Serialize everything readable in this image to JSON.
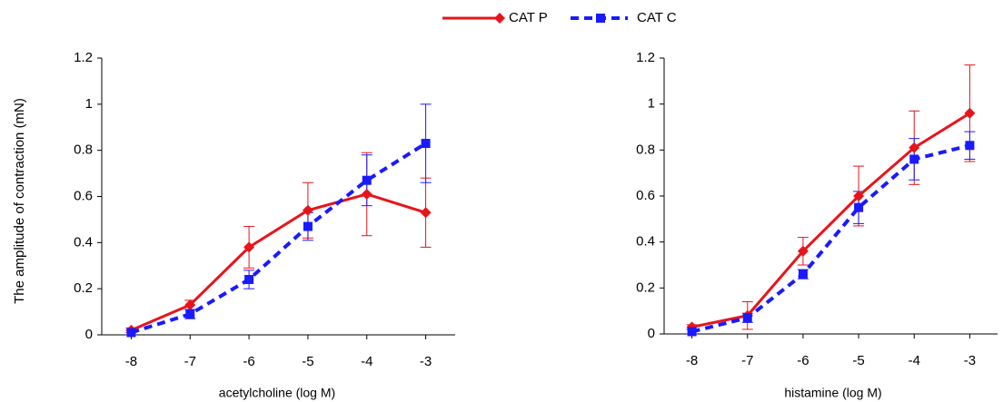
{
  "chart_data": [
    {
      "type": "line",
      "xlabel": "acetylcholine (log M)",
      "ylabel": "The amplitude of contraction (mN)",
      "x": [
        -8,
        -7,
        -6,
        -5,
        -4,
        -3
      ],
      "xlim": [
        -8.5,
        -2.5
      ],
      "xticks": [
        -8,
        -7,
        -6,
        -5,
        -4,
        -3
      ],
      "ylim": [
        0,
        1.2
      ],
      "yticks": [
        0,
        0.2,
        0.4,
        0.6,
        0.8,
        1,
        1.2
      ],
      "legend": "top",
      "series": [
        {
          "name": "CAT P",
          "color": "#e8141b",
          "marker": "diamond",
          "dashed": false,
          "values": [
            0.02,
            0.13,
            0.38,
            0.54,
            0.61,
            0.53
          ],
          "errors": [
            0.01,
            0.02,
            0.09,
            0.12,
            0.18,
            0.15
          ]
        },
        {
          "name": "CAT C",
          "color": "#1a1aff",
          "marker": "square",
          "dashed": true,
          "values": [
            0.01,
            0.09,
            0.24,
            0.47,
            0.67,
            0.83
          ],
          "errors": [
            0.01,
            0.02,
            0.04,
            0.06,
            0.11,
            0.17
          ]
        }
      ]
    },
    {
      "type": "line",
      "xlabel": "histamine (log M)",
      "x": [
        -8,
        -7,
        -6,
        -5,
        -4,
        -3
      ],
      "xlim": [
        -8.5,
        -2.5
      ],
      "xticks": [
        -8,
        -7,
        -6,
        -5,
        -4,
        -3
      ],
      "ylim": [
        0,
        1.2
      ],
      "yticks": [
        0,
        0.2,
        0.4,
        0.6,
        0.8,
        1,
        1.2
      ],
      "series": [
        {
          "color": "#e8141b",
          "marker": "diamond",
          "dashed": false,
          "values": [
            0.03,
            0.08,
            0.36,
            0.6,
            0.81,
            0.96
          ],
          "errors": [
            0.01,
            0.06,
            0.06,
            0.13,
            0.16,
            0.21
          ]
        },
        {
          "color": "#1a1aff",
          "marker": "square",
          "dashed": true,
          "values": [
            0.01,
            0.07,
            0.26,
            0.55,
            0.76,
            0.82
          ],
          "errors": [
            0.01,
            0.02,
            0.02,
            0.07,
            0.09,
            0.06
          ]
        }
      ]
    }
  ]
}
